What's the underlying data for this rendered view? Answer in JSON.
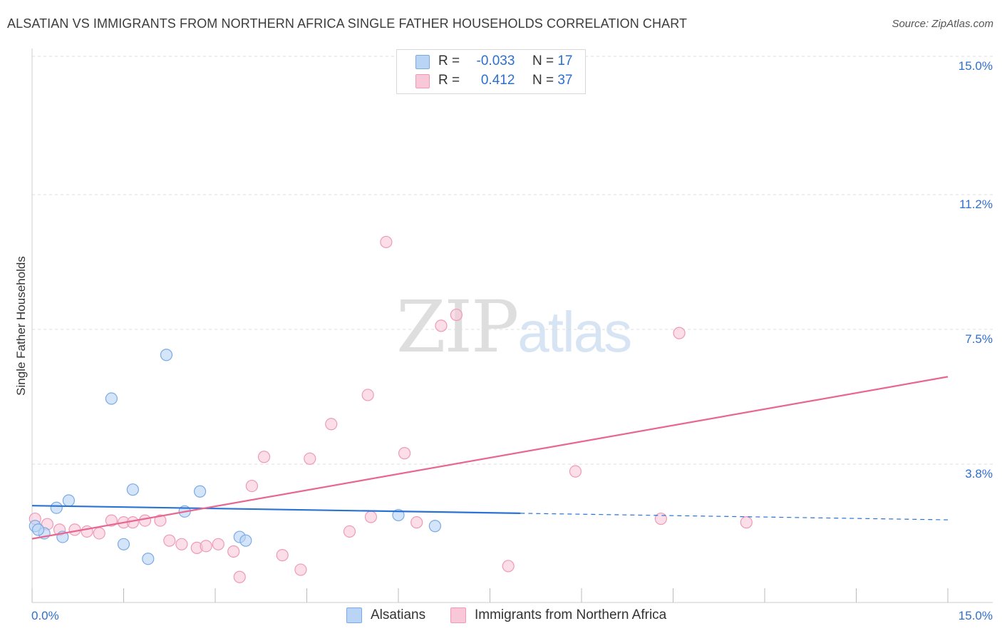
{
  "title": "ALSATIAN VS IMMIGRANTS FROM NORTHERN AFRICA SINGLE FATHER HOUSEHOLDS CORRELATION CHART",
  "source": "Source: ZipAtlas.com",
  "watermark": {
    "part1": "ZIP",
    "part2": "atlas"
  },
  "legend_top": {
    "rows": [
      {
        "r_label": "R =",
        "r_value": "-0.033",
        "n_label": "N =",
        "n_value": "17"
      },
      {
        "r_label": "R =",
        "r_value": "0.412",
        "n_label": "N =",
        "n_value": "37"
      }
    ]
  },
  "legend_bottom": {
    "series1": "Alsatians",
    "series2": "Immigrants from Northern Africa"
  },
  "colors": {
    "blue_fill": "#b9d4f5",
    "blue_stroke": "#7aaae6",
    "blue_line": "#2a72d4",
    "pink_fill": "#f9c8d8",
    "pink_stroke": "#ee9ab6",
    "pink_line": "#e8678f",
    "tick_label": "#2f6fcf",
    "grid": "#dddddd"
  },
  "chart_data": {
    "type": "scatter",
    "title": "ALSATIAN VS IMMIGRANTS FROM NORTHERN AFRICA SINGLE FATHER HOUSEHOLDS CORRELATION CHART",
    "xlabel": "",
    "ylabel": "Single Father Households",
    "xlim": [
      0,
      15
    ],
    "ylim": [
      0,
      15
    ],
    "x_tick_labels": [
      "0.0%",
      "15.0%"
    ],
    "y_ticks": [
      3.8,
      7.5,
      11.2,
      15.0
    ],
    "y_tick_labels": [
      "3.8%",
      "7.5%",
      "11.2%",
      "15.0%"
    ],
    "series": [
      {
        "name": "Alsatians",
        "R": -0.033,
        "N": 17,
        "points": [
          [
            0.05,
            2.1
          ],
          [
            0.2,
            1.9
          ],
          [
            0.4,
            2.6
          ],
          [
            0.5,
            1.8
          ],
          [
            0.6,
            2.8
          ],
          [
            1.3,
            5.6
          ],
          [
            1.5,
            1.6
          ],
          [
            1.65,
            3.1
          ],
          [
            1.9,
            1.2
          ],
          [
            2.2,
            6.8
          ],
          [
            2.5,
            2.5
          ],
          [
            2.75,
            3.05
          ],
          [
            3.4,
            1.8
          ],
          [
            3.5,
            1.7
          ],
          [
            6.0,
            2.4
          ],
          [
            6.6,
            2.1
          ],
          [
            0.1,
            2.0
          ]
        ],
        "trend": {
          "x_start": 0,
          "y_start": 2.66,
          "x_solid_end": 8.0,
          "y_solid_end": 2.45,
          "x_end": 15.0,
          "y_end": 2.27
        }
      },
      {
        "name": "Immigrants from Northern Africa",
        "R": 0.412,
        "N": 37,
        "points": [
          [
            0.05,
            2.3
          ],
          [
            0.25,
            2.15
          ],
          [
            0.45,
            2.0
          ],
          [
            0.7,
            2.0
          ],
          [
            0.9,
            1.95
          ],
          [
            1.1,
            1.9
          ],
          [
            1.3,
            2.25
          ],
          [
            1.5,
            2.2
          ],
          [
            1.65,
            2.2
          ],
          [
            1.85,
            2.25
          ],
          [
            2.1,
            2.25
          ],
          [
            2.25,
            1.7
          ],
          [
            2.45,
            1.6
          ],
          [
            2.7,
            1.5
          ],
          [
            2.85,
            1.55
          ],
          [
            3.05,
            1.6
          ],
          [
            3.3,
            1.4
          ],
          [
            3.4,
            0.7
          ],
          [
            3.6,
            3.2
          ],
          [
            3.8,
            4.0
          ],
          [
            4.1,
            1.3
          ],
          [
            4.4,
            0.9
          ],
          [
            4.55,
            3.95
          ],
          [
            4.9,
            4.9
          ],
          [
            5.2,
            1.95
          ],
          [
            5.5,
            5.7
          ],
          [
            5.55,
            2.35
          ],
          [
            5.8,
            9.9
          ],
          [
            6.1,
            4.1
          ],
          [
            6.3,
            2.2
          ],
          [
            6.7,
            7.6
          ],
          [
            6.95,
            7.9
          ],
          [
            7.8,
            1.0
          ],
          [
            8.9,
            3.6
          ],
          [
            10.3,
            2.3
          ],
          [
            10.6,
            7.4
          ],
          [
            11.7,
            2.2
          ]
        ],
        "trend": {
          "x_start": 0,
          "y_start": 1.75,
          "x_end": 15.0,
          "y_end": 6.2
        }
      }
    ]
  }
}
